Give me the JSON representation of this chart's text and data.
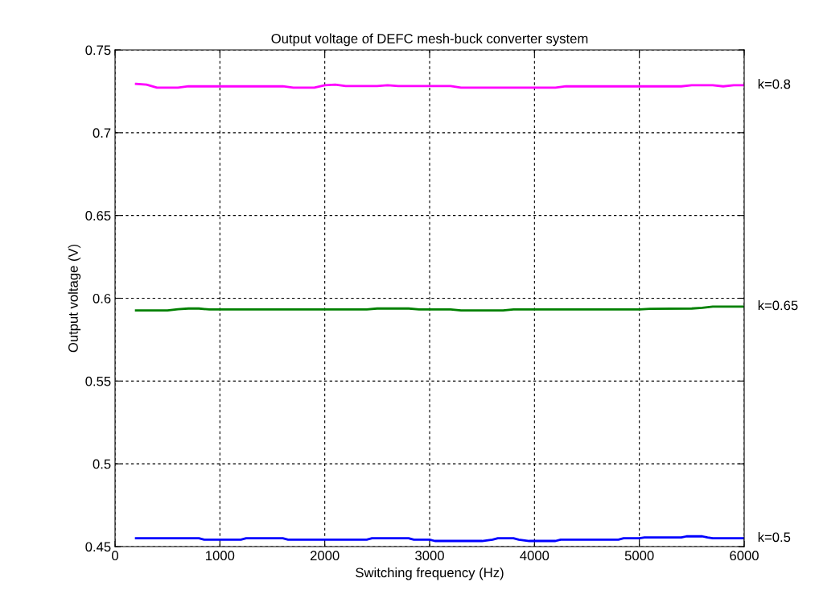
{
  "chart_data": {
    "type": "line",
    "title": "Output voltage of DEFC mesh-buck converter system",
    "xlabel": "Switching frequency (Hz)",
    "ylabel": "Output voltage (V)",
    "xlim": [
      0,
      6000
    ],
    "xticks": [
      0,
      1000,
      2000,
      3000,
      4000,
      5000,
      6000
    ],
    "ylim": [
      0.45,
      0.75
    ],
    "yticks": [
      0.45,
      0.5,
      0.55,
      0.6,
      0.65,
      0.7,
      0.75
    ],
    "grid": true,
    "line_style": "solid",
    "marker": "none",
    "series": [
      {
        "name": "k=0.8",
        "color": "#ff00ff",
        "x": [
          200,
          300,
          400,
          600,
          700,
          1600,
          1700,
          1900,
          2000,
          2100,
          2200,
          2500,
          2600,
          2700,
          3200,
          3300,
          4200,
          4300,
          5400,
          5500,
          5700,
          5800,
          5900,
          6000
        ],
        "values": [
          0.7295,
          0.729,
          0.7272,
          0.7272,
          0.728,
          0.728,
          0.7272,
          0.7272,
          0.7287,
          0.729,
          0.7282,
          0.7282,
          0.7287,
          0.7282,
          0.7282,
          0.7272,
          0.7272,
          0.728,
          0.728,
          0.7287,
          0.7287,
          0.728,
          0.7287,
          0.7287
        ]
      },
      {
        "name": "k=0.65",
        "color": "#008000",
        "x": [
          200,
          500,
          600,
          700,
          800,
          900,
          2400,
          2500,
          2800,
          2900,
          3200,
          3300,
          3700,
          3800,
          5000,
          5100,
          5500,
          5600,
          5700,
          6000
        ],
        "values": [
          0.5926,
          0.5926,
          0.5934,
          0.5938,
          0.5938,
          0.5932,
          0.5932,
          0.5938,
          0.5938,
          0.5932,
          0.5932,
          0.5926,
          0.5926,
          0.5932,
          0.5932,
          0.5936,
          0.5938,
          0.5942,
          0.595,
          0.595
        ]
      },
      {
        "name": "k=0.5",
        "color": "#0000ff",
        "x": [
          200,
          800,
          850,
          1200,
          1250,
          1600,
          1650,
          2400,
          2450,
          2800,
          2850,
          3000,
          3050,
          3500,
          3600,
          3650,
          3800,
          3850,
          3950,
          4200,
          4250,
          4800,
          4850,
          5000,
          5050,
          5400,
          5450,
          5600,
          5650,
          5700,
          6000
        ],
        "values": [
          0.455,
          0.455,
          0.4542,
          0.4542,
          0.455,
          0.455,
          0.4542,
          0.4542,
          0.455,
          0.455,
          0.4542,
          0.4542,
          0.4534,
          0.4534,
          0.4542,
          0.455,
          0.455,
          0.4542,
          0.4534,
          0.4534,
          0.4542,
          0.4542,
          0.455,
          0.455,
          0.4555,
          0.4555,
          0.4562,
          0.4562,
          0.4555,
          0.455,
          0.455
        ]
      }
    ]
  }
}
